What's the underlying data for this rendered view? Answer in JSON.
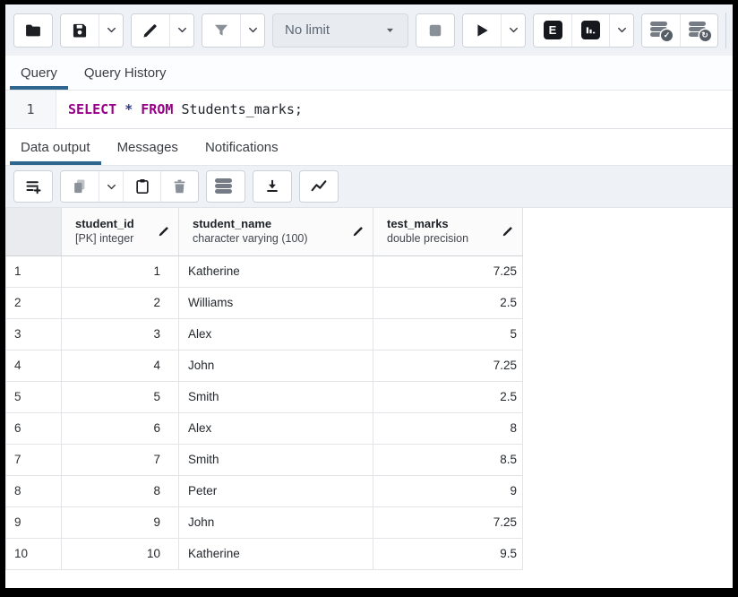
{
  "colors": {
    "accent_tab_underline": "#2e6690",
    "sql_keyword": "#990088",
    "toolbar_background": "#eef1f5",
    "disabled_icon_gray": "#8a9097",
    "dark_icon": "#15181d"
  },
  "top_toolbar": {
    "limit_value": "No limit",
    "explain_label": "E"
  },
  "icons": {
    "commit_badge": "✓",
    "rollback_badge": "↻"
  },
  "query_tabs": {
    "items": [
      {
        "label": "Query",
        "active": true
      },
      {
        "label": "Query History",
        "active": false
      }
    ]
  },
  "editor": {
    "line_number": "1",
    "sql": {
      "select": "SELECT",
      "star": "*",
      "from": "FROM",
      "rest": "Students_marks;"
    }
  },
  "output_tabs": {
    "items": [
      {
        "label": "Data output",
        "active": true
      },
      {
        "label": "Messages",
        "active": false
      },
      {
        "label": "Notifications",
        "active": false
      }
    ]
  },
  "grid": {
    "columns": [
      {
        "name": "student_id",
        "type": "[PK] integer",
        "align": "right"
      },
      {
        "name": "student_name",
        "type": "character varying (100)",
        "align": "left"
      },
      {
        "name": "test_marks",
        "type": "double precision",
        "align": "right"
      }
    ],
    "rows": [
      {
        "num": "1",
        "cells": [
          "1",
          "Katherine",
          "7.25"
        ]
      },
      {
        "num": "2",
        "cells": [
          "2",
          "Williams",
          "2.5"
        ]
      },
      {
        "num": "3",
        "cells": [
          "3",
          "Alex",
          "5"
        ]
      },
      {
        "num": "4",
        "cells": [
          "4",
          "John",
          "7.25"
        ]
      },
      {
        "num": "5",
        "cells": [
          "5",
          "Smith",
          "2.5"
        ]
      },
      {
        "num": "6",
        "cells": [
          "6",
          "Alex",
          "8"
        ]
      },
      {
        "num": "7",
        "cells": [
          "7",
          "Smith",
          "8.5"
        ]
      },
      {
        "num": "8",
        "cells": [
          "8",
          "Peter",
          "9"
        ]
      },
      {
        "num": "9",
        "cells": [
          "9",
          "John",
          "7.25"
        ]
      },
      {
        "num": "10",
        "cells": [
          "10",
          "Katherine",
          "9.5"
        ]
      }
    ]
  }
}
